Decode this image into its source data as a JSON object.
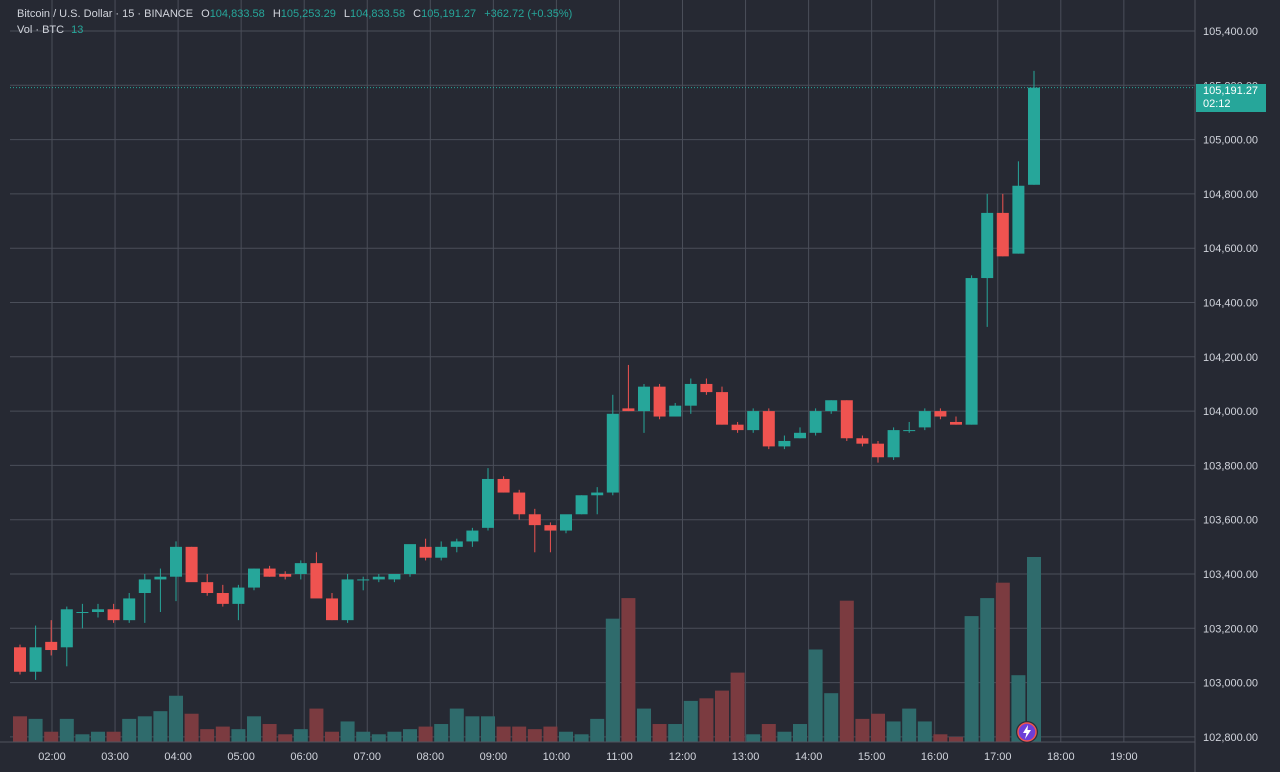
{
  "legend": {
    "symbol": "Bitcoin / U.S. Dollar · 15 · BINANCE",
    "o_label": "O",
    "o_value": "104,833.58",
    "h_label": "H",
    "h_value": "105,253.29",
    "l_label": "L",
    "l_value": "104,833.58",
    "c_label": "C",
    "c_value": "105,191.27",
    "change": "+362.72 (+0.35%)",
    "vol_label": "Vol · BTC",
    "vol_value": "13"
  },
  "price_tag": {
    "price": "105,191.27",
    "countdown": "02:12"
  },
  "icons": {
    "bolt": "lightning-bolt-icon"
  },
  "colors": {
    "background": "#262933",
    "grid": "#4a4e59",
    "up": "#26a69a",
    "down": "#ef5350",
    "up_volume": "#2f6b6c",
    "down_volume": "#7b3b40",
    "axis_text": "#d1d4dc"
  },
  "chart_data": {
    "type": "candlestick",
    "interval": "15",
    "x_ticks": [
      "02:00",
      "03:00",
      "04:00",
      "05:00",
      "06:00",
      "07:00",
      "08:00",
      "09:00",
      "10:00",
      "11:00",
      "12:00",
      "13:00",
      "14:00",
      "15:00",
      "16:00",
      "17:00",
      "18:00",
      "19:00"
    ],
    "y_ticks": [
      "105,400.00",
      "105,200.00",
      "105,000.00",
      "104,800.00",
      "104,600.00",
      "104,400.00",
      "104,200.00",
      "104,000.00",
      "103,800.00",
      "103,600.00",
      "103,400.00",
      "103,200.00",
      "103,000.00",
      "102,800.00"
    ],
    "ylim": [
      102800,
      105400
    ],
    "last_price": 105191.27,
    "candles": [
      {
        "o": 103130,
        "h": 103140,
        "l": 103030,
        "c": 103040
      },
      {
        "o": 103040,
        "h": 103210,
        "l": 103010,
        "c": 103130
      },
      {
        "o": 103150,
        "h": 103230,
        "l": 103100,
        "c": 103120
      },
      {
        "o": 103130,
        "h": 103280,
        "l": 103060,
        "c": 103270
      },
      {
        "o": 103260,
        "h": 103290,
        "l": 103200,
        "c": 103260
      },
      {
        "o": 103260,
        "h": 103290,
        "l": 103240,
        "c": 103270
      },
      {
        "o": 103270,
        "h": 103290,
        "l": 103220,
        "c": 103230
      },
      {
        "o": 103230,
        "h": 103330,
        "l": 103220,
        "c": 103310
      },
      {
        "o": 103330,
        "h": 103400,
        "l": 103220,
        "c": 103380
      },
      {
        "o": 103380,
        "h": 103420,
        "l": 103260,
        "c": 103390
      },
      {
        "o": 103390,
        "h": 103520,
        "l": 103300,
        "c": 103500
      },
      {
        "o": 103500,
        "h": 103500,
        "l": 103380,
        "c": 103370
      },
      {
        "o": 103370,
        "h": 103400,
        "l": 103320,
        "c": 103330
      },
      {
        "o": 103330,
        "h": 103360,
        "l": 103280,
        "c": 103290
      },
      {
        "o": 103290,
        "h": 103360,
        "l": 103230,
        "c": 103350
      },
      {
        "o": 103350,
        "h": 103420,
        "l": 103340,
        "c": 103420
      },
      {
        "o": 103420,
        "h": 103430,
        "l": 103390,
        "c": 103390
      },
      {
        "o": 103400,
        "h": 103410,
        "l": 103380,
        "c": 103390
      },
      {
        "o": 103400,
        "h": 103450,
        "l": 103380,
        "c": 103440
      },
      {
        "o": 103440,
        "h": 103480,
        "l": 103330,
        "c": 103310
      },
      {
        "o": 103310,
        "h": 103330,
        "l": 103230,
        "c": 103230
      },
      {
        "o": 103230,
        "h": 103400,
        "l": 103220,
        "c": 103380
      },
      {
        "o": 103380,
        "h": 103390,
        "l": 103340,
        "c": 103380
      },
      {
        "o": 103380,
        "h": 103400,
        "l": 103370,
        "c": 103390
      },
      {
        "o": 103380,
        "h": 103400,
        "l": 103370,
        "c": 103400
      },
      {
        "o": 103400,
        "h": 103500,
        "l": 103390,
        "c": 103510
      },
      {
        "o": 103500,
        "h": 103530,
        "l": 103450,
        "c": 103460
      },
      {
        "o": 103460,
        "h": 103520,
        "l": 103450,
        "c": 103500
      },
      {
        "o": 103500,
        "h": 103530,
        "l": 103480,
        "c": 103520
      },
      {
        "o": 103520,
        "h": 103570,
        "l": 103500,
        "c": 103560
      },
      {
        "o": 103570,
        "h": 103790,
        "l": 103560,
        "c": 103750
      },
      {
        "o": 103750,
        "h": 103760,
        "l": 103700,
        "c": 103700
      },
      {
        "o": 103700,
        "h": 103710,
        "l": 103600,
        "c": 103620
      },
      {
        "o": 103620,
        "h": 103640,
        "l": 103480,
        "c": 103580
      },
      {
        "o": 103580,
        "h": 103590,
        "l": 103480,
        "c": 103560
      },
      {
        "o": 103560,
        "h": 103610,
        "l": 103550,
        "c": 103620
      },
      {
        "o": 103620,
        "h": 103690,
        "l": 103620,
        "c": 103690
      },
      {
        "o": 103690,
        "h": 103720,
        "l": 103620,
        "c": 103700
      },
      {
        "o": 103700,
        "h": 104060,
        "l": 103690,
        "c": 103990
      },
      {
        "o": 104010,
        "h": 104170,
        "l": 104000,
        "c": 104000
      },
      {
        "o": 104000,
        "h": 104100,
        "l": 103920,
        "c": 104090
      },
      {
        "o": 104090,
        "h": 104100,
        "l": 103970,
        "c": 103980
      },
      {
        "o": 103980,
        "h": 104030,
        "l": 103980,
        "c": 104020
      },
      {
        "o": 104020,
        "h": 104120,
        "l": 103990,
        "c": 104100
      },
      {
        "o": 104100,
        "h": 104120,
        "l": 104060,
        "c": 104070
      },
      {
        "o": 104070,
        "h": 104090,
        "l": 103950,
        "c": 103950
      },
      {
        "o": 103950,
        "h": 103960,
        "l": 103920,
        "c": 103930
      },
      {
        "o": 103930,
        "h": 104010,
        "l": 103920,
        "c": 104000
      },
      {
        "o": 104000,
        "h": 104010,
        "l": 103860,
        "c": 103870
      },
      {
        "o": 103870,
        "h": 103910,
        "l": 103860,
        "c": 103890
      },
      {
        "o": 103900,
        "h": 103940,
        "l": 103900,
        "c": 103920
      },
      {
        "o": 103920,
        "h": 104010,
        "l": 103910,
        "c": 104000
      },
      {
        "o": 104000,
        "h": 104040,
        "l": 103990,
        "c": 104040
      },
      {
        "o": 104040,
        "h": 104040,
        "l": 103890,
        "c": 103900
      },
      {
        "o": 103900,
        "h": 103910,
        "l": 103870,
        "c": 103880
      },
      {
        "o": 103880,
        "h": 103890,
        "l": 103810,
        "c": 103830
      },
      {
        "o": 103830,
        "h": 103940,
        "l": 103820,
        "c": 103930
      },
      {
        "o": 103930,
        "h": 103960,
        "l": 103920,
        "c": 103930
      },
      {
        "o": 103940,
        "h": 104010,
        "l": 103930,
        "c": 104000
      },
      {
        "o": 104000,
        "h": 104010,
        "l": 103970,
        "c": 103980
      },
      {
        "o": 103960,
        "h": 103980,
        "l": 103950,
        "c": 103950
      },
      {
        "o": 103950,
        "h": 104500,
        "l": 103950,
        "c": 104490
      },
      {
        "o": 104490,
        "h": 104800,
        "l": 104310,
        "c": 104730
      },
      {
        "o": 104730,
        "h": 104800,
        "l": 104570,
        "c": 104570
      },
      {
        "o": 104580,
        "h": 104920,
        "l": 104580,
        "c": 104830
      },
      {
        "o": 104833.58,
        "h": 105253.29,
        "l": 104833.58,
        "c": 105191.27
      }
    ],
    "volume": [
      1.0,
      0.9,
      0.4,
      0.9,
      0.3,
      0.4,
      0.4,
      0.9,
      1.0,
      1.2,
      1.8,
      1.1,
      0.5,
      0.6,
      0.5,
      1.0,
      0.7,
      0.3,
      0.5,
      1.3,
      0.4,
      0.8,
      0.4,
      0.3,
      0.4,
      0.5,
      0.6,
      0.7,
      1.3,
      1.0,
      1.0,
      0.6,
      0.6,
      0.5,
      0.6,
      0.4,
      0.3,
      0.9,
      4.8,
      5.6,
      1.3,
      0.7,
      0.7,
      1.6,
      1.7,
      2.0,
      2.7,
      0.3,
      0.7,
      0.4,
      0.7,
      3.6,
      1.9,
      5.5,
      0.9,
      1.1,
      0.8,
      1.3,
      0.8,
      0.3,
      0.2,
      4.9,
      5.6,
      6.2,
      2.6,
      7.2
    ]
  }
}
